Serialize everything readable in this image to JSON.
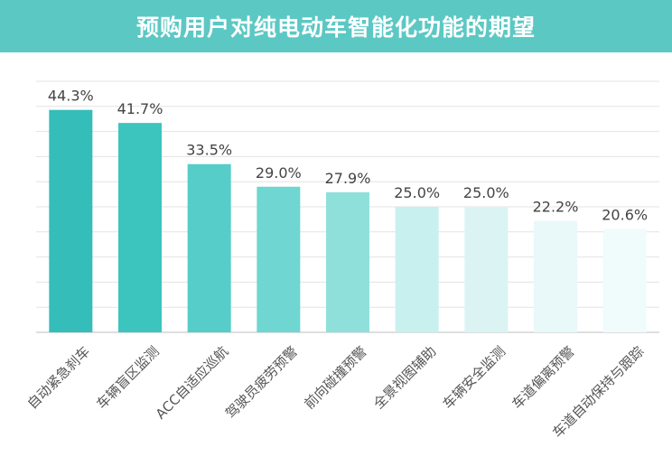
{
  "title": "预购用户对纯电动车智能化功能的期望",
  "colors": {
    "banner": "#5cc8c4",
    "bars": [
      "#34bdb9",
      "#3cc4bf",
      "#56cdc8",
      "#6fd6d1",
      "#8fe0db",
      "#c8f0ee",
      "#dbf4f3",
      "#e9f8f8",
      "#f0fbfb"
    ]
  },
  "chart_data": {
    "type": "bar",
    "title": "预购用户对纯电动车智能化功能的期望",
    "categories": [
      "自动紧急刹车",
      "车辆盲区监测",
      "ACC自适应巡航",
      "驾驶员疲劳预警",
      "前向碰撞预警",
      "全景视图辅助",
      "车辆安全监测",
      "车道偏离预警",
      "车道自动保持与跟踪"
    ],
    "values": [
      44.3,
      41.7,
      33.5,
      29.0,
      27.9,
      25.0,
      25.0,
      22.2,
      20.6
    ],
    "value_labels": [
      "44.3%",
      "41.7%",
      "33.5%",
      "29.0%",
      "27.9%",
      "25.0%",
      "25.0%",
      "22.2%",
      "20.6%"
    ],
    "ylim": [
      0,
      50
    ],
    "grid": true,
    "xlabel": "",
    "ylabel": ""
  }
}
